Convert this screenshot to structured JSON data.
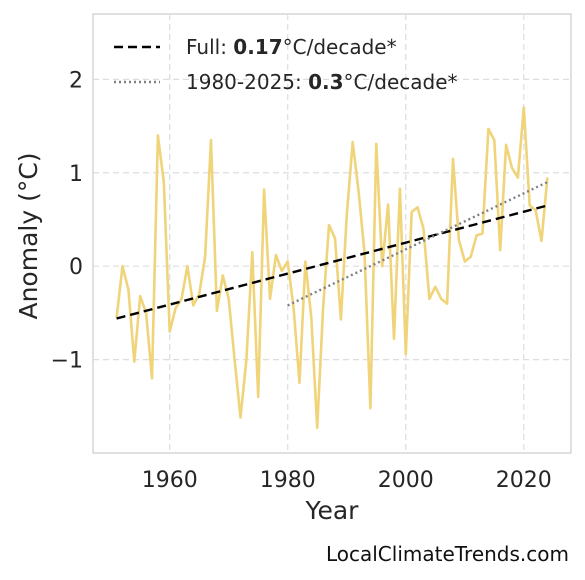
{
  "chart_data": {
    "type": "line",
    "xlabel": "Year",
    "ylabel": "Anomaly (°C)",
    "xlim": [
      1947,
      2028
    ],
    "ylim": [
      -2.0,
      2.7
    ],
    "xticks": [
      1960,
      1980,
      2000,
      2020
    ],
    "yticks": [
      -1,
      0,
      1,
      2
    ],
    "ytick_labels": [
      "−1",
      "0",
      "1",
      "2"
    ],
    "grid": true,
    "legend_position": "top-left",
    "series": [
      {
        "style": "solid",
        "color": "#f0d47a",
        "x": [
          1951,
          1952,
          1953,
          1954,
          1955,
          1956,
          1957,
          1958,
          1959,
          1960,
          1961,
          1962,
          1963,
          1964,
          1965,
          1966,
          1967,
          1968,
          1969,
          1970,
          1971,
          1972,
          1973,
          1974,
          1975,
          1976,
          1977,
          1978,
          1979,
          1980,
          1981,
          1982,
          1983,
          1984,
          1985,
          1986,
          1987,
          1988,
          1989,
          1990,
          1991,
          1992,
          1993,
          1994,
          1995,
          1996,
          1997,
          1998,
          1999,
          2000,
          2001,
          2002,
          2003,
          2004,
          2005,
          2006,
          2007,
          2008,
          2009,
          2010,
          2011,
          2012,
          2013,
          2014,
          2015,
          2016,
          2017,
          2018,
          2019,
          2020,
          2021,
          2022,
          2023,
          2024
        ],
        "y": [
          -0.55,
          0.0,
          -0.25,
          -1.02,
          -0.32,
          -0.5,
          -1.2,
          1.4,
          0.9,
          -0.7,
          -0.45,
          -0.35,
          0.0,
          -0.42,
          -0.3,
          0.1,
          1.35,
          -0.48,
          -0.1,
          -0.35,
          -1.0,
          -1.62,
          -1.0,
          0.15,
          -1.4,
          0.82,
          -0.35,
          0.12,
          -0.05,
          0.05,
          -0.45,
          -1.25,
          0.05,
          -0.55,
          -1.73,
          -0.45,
          0.44,
          0.3,
          -0.57,
          0.55,
          1.33,
          0.8,
          0.15,
          -1.52,
          1.31,
          0.0,
          0.66,
          -0.78,
          0.83,
          -0.94,
          0.58,
          0.63,
          0.4,
          -0.35,
          -0.22,
          -0.35,
          -0.4,
          1.15,
          0.28,
          0.05,
          0.1,
          0.33,
          0.35,
          1.47,
          1.35,
          0.17,
          1.3,
          1.05,
          0.95,
          1.7,
          0.65,
          0.6,
          0.27,
          0.95
        ]
      },
      {
        "style": "dashed",
        "color": "#000000",
        "x": [
          1951,
          2024
        ],
        "y": [
          -0.56,
          0.65
        ]
      },
      {
        "style": "dotted",
        "color": "#808080",
        "x": [
          1980,
          2024
        ],
        "y": [
          -0.42,
          0.9
        ]
      }
    ],
    "legend": [
      {
        "style": "dashed",
        "color": "#000000",
        "prefix": "Full: ",
        "bold": "0.17",
        "suffix": "°C/decade*"
      },
      {
        "style": "dotted",
        "color": "#808080",
        "prefix": "1980-2025: ",
        "bold": "0.3",
        "suffix": "°C/decade*"
      }
    ]
  },
  "source_text": "LocalClimateTrends.com"
}
